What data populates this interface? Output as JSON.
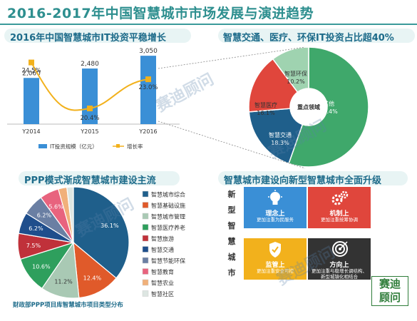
{
  "page": {
    "title": "2016-2017年中国智慧城市市场发展与演进趋势"
  },
  "panels": {
    "investment": {
      "title": "2016年中国智慧城市IT投资平稳增长"
    },
    "share": {
      "title": "智慧交通、医疗、环保IT投资占比超40%"
    },
    "ppp": {
      "title": "PPP模式渐成智慧城市建设主流",
      "source": "财政部PPP项目库智慧城市项目类型分布"
    },
    "upgrade": {
      "title": "智慧城市建设向新型智慧城市全面升级",
      "vertical_label": [
        "新",
        "型",
        "智",
        "慧",
        "城",
        "市"
      ],
      "tiles": [
        {
          "title": "理念上",
          "desc": "更加注重为民服务",
          "icon": "lightbulb-icon",
          "color": "#3a8fd6"
        },
        {
          "title": "机制上",
          "desc": "更加注重统筹协调",
          "icon": "gears-icon",
          "color": "#e0463c"
        },
        {
          "title": "监管上",
          "desc": "更加注重安全可控",
          "icon": "shield-icon",
          "color": "#f2b11c"
        },
        {
          "title": "方向上",
          "desc": "更加注重与稳增长调结构、新型城镇化相结合",
          "icon": "target-icon",
          "color": "#333333"
        }
      ]
    }
  },
  "logo": {
    "line1": "赛迪",
    "line2": "顾问",
    "text": "赛迪顾问"
  },
  "watermark": "赛迪顾问",
  "chart_data": [
    {
      "type": "bar",
      "title": "2016年中国智慧城市IT投资平稳增长",
      "categories": [
        "Y2014",
        "Y2015",
        "Y2016"
      ],
      "series": [
        {
          "name": "IT投资规模（亿元）",
          "type": "bar",
          "values": [
            2060,
            2480,
            3050
          ],
          "labels": [
            "2,060",
            "2,480",
            "3,050"
          ],
          "color": "#3a8fd6"
        },
        {
          "name": "增长率",
          "type": "line",
          "values": [
            24.5,
            20.4,
            23.0
          ],
          "labels": [
            "24.5%",
            "20.4%",
            "23.0%"
          ],
          "color": "#f2b11c"
        }
      ],
      "ylim": [
        0,
        3500
      ],
      "y2lim": [
        19,
        26
      ],
      "legend": "bottom"
    },
    {
      "type": "pie",
      "variant": "donut",
      "title": "智慧交通、医疗、环保IT投资占比超40%",
      "center_label": "重点领域",
      "slices": [
        {
          "label": "其他",
          "value": 55.4,
          "text": "55.4%",
          "color": "#3fa86b"
        },
        {
          "label": "智慧交通",
          "value": 18.3,
          "text": "18.3%",
          "color": "#1f5f8b"
        },
        {
          "label": "智慧医疗",
          "value": 16.1,
          "text": "16.1%",
          "color": "#e0463c"
        },
        {
          "label": "智慧环保",
          "value": 10.2,
          "text": "10.2%",
          "color": "#9fd3b0"
        }
      ]
    },
    {
      "type": "pie",
      "title": "PPP模式渐成智慧城市建设主流",
      "legend": "right",
      "slices": [
        {
          "label": "智慧城市综合",
          "value": 36.1,
          "text": "36.1%",
          "color": "#1f5f8b"
        },
        {
          "label": "智慧基础设施",
          "value": 12.4,
          "text": "12.4%",
          "color": "#e05a2a"
        },
        {
          "label": "智慧城市管理",
          "value": 11.2,
          "text": "11.2%",
          "color": "#a9c9b4"
        },
        {
          "label": "智慧医疗养老",
          "value": 10.6,
          "text": "10.6%",
          "color": "#2e9f5d"
        },
        {
          "label": "智慧旅游",
          "value": 7.5,
          "text": "7.5%",
          "color": "#c0313a"
        },
        {
          "label": "智慧交通",
          "value": 6.2,
          "text": "6.2%",
          "color": "#1f4e8c"
        },
        {
          "label": "智慧节能环保",
          "value": 6.2,
          "text": "6.2%",
          "color": "#6a7fa3"
        },
        {
          "label": "智慧教育",
          "value": 5.6,
          "text": "5.6%",
          "color": "#e8637e"
        },
        {
          "label": "智慧农业",
          "value": 2.5,
          "text": "2.5%",
          "color": "#f1b07a"
        },
        {
          "label": "智慧社区",
          "value": 1.9,
          "text": "1.9%",
          "color": "#dde6e2"
        }
      ]
    }
  ]
}
